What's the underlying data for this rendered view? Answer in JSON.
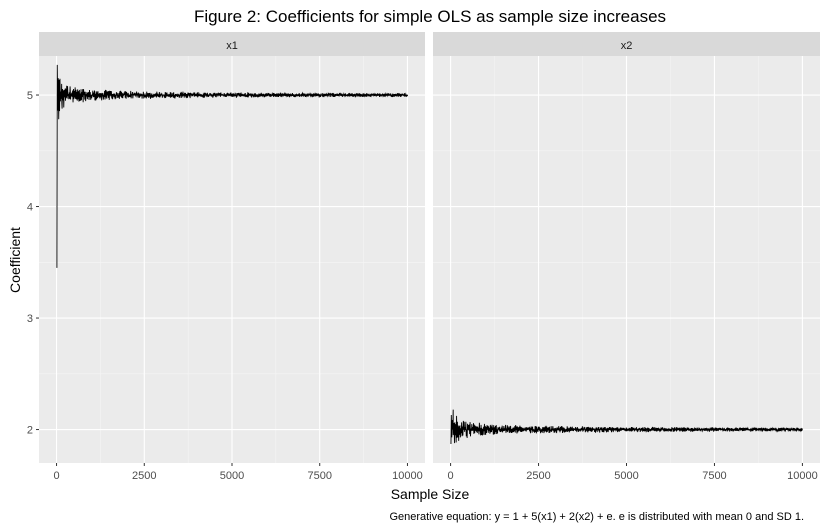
{
  "chart_data": {
    "type": "line",
    "title": "Figure 2: Coefficients for simple OLS as sample size increases",
    "xlabel": "Sample Size",
    "ylabel": "Coefficient",
    "caption": "Generative equation: y = 1 + 5(x1) + 2(x2) + e. e is distributed with mean 0 and SD 1.",
    "xlim": [
      -500,
      10500
    ],
    "ylim": [
      1.7,
      5.35
    ],
    "x_ticks": [
      0,
      2500,
      5000,
      7500,
      10000
    ],
    "x_tick_labels": [
      "0",
      "2500",
      "5000",
      "7500",
      "10000"
    ],
    "y_ticks": [
      2,
      3,
      4,
      5
    ],
    "y_tick_labels": [
      "2",
      "3",
      "4",
      "5"
    ],
    "grid": true,
    "panel_background": "#ebebeb",
    "strip_background": "#d9d9d9",
    "line_color": "#000000",
    "facets": [
      {
        "label": "x1",
        "true_value": 5,
        "series": [
          {
            "x": 10,
            "y": 3.45
          },
          {
            "x": 20,
            "y": 5.27
          },
          {
            "x": 35,
            "y": 4.86
          },
          {
            "x": 50,
            "y": 5.15
          },
          {
            "x": 75,
            "y": 4.9
          },
          {
            "x": 100,
            "y": 5.1
          },
          {
            "x": 150,
            "y": 4.93
          },
          {
            "x": 250,
            "y": 5.06
          },
          {
            "x": 400,
            "y": 4.96
          },
          {
            "x": 600,
            "y": 5.04
          },
          {
            "x": 1000,
            "y": 4.97
          },
          {
            "x": 2000,
            "y": 5.02
          },
          {
            "x": 4000,
            "y": 4.99
          },
          {
            "x": 7000,
            "y": 5.01
          },
          {
            "x": 10000,
            "y": 5.0
          }
        ]
      },
      {
        "label": "x2",
        "true_value": 2,
        "series": [
          {
            "x": 10,
            "y": 1.87
          },
          {
            "x": 20,
            "y": 2.13
          },
          {
            "x": 35,
            "y": 1.93
          },
          {
            "x": 50,
            "y": 2.08
          },
          {
            "x": 75,
            "y": 1.95
          },
          {
            "x": 100,
            "y": 2.05
          },
          {
            "x": 150,
            "y": 1.97
          },
          {
            "x": 250,
            "y": 2.03
          },
          {
            "x": 400,
            "y": 1.98
          },
          {
            "x": 600,
            "y": 2.02
          },
          {
            "x": 1000,
            "y": 1.99
          },
          {
            "x": 2000,
            "y": 2.01
          },
          {
            "x": 4000,
            "y": 1.995
          },
          {
            "x": 7000,
            "y": 2.005
          },
          {
            "x": 10000,
            "y": 2.0
          }
        ]
      }
    ]
  }
}
